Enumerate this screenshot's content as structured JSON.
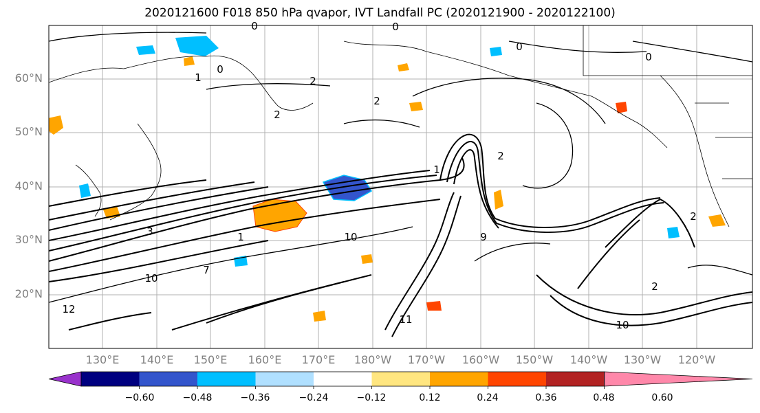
{
  "title": "2020121600 F018 850 hPa qvapor, IVT Landfall PC (2020121900 - 2020122100)",
  "lat_labels": [
    "60°N",
    "50°N",
    "40°N",
    "30°N",
    "20°N"
  ],
  "lon_labels": [
    "130°E",
    "140°E",
    "150°E",
    "160°E",
    "170°E",
    "180°W",
    "170°W",
    "160°W",
    "150°W",
    "140°W",
    "130°W",
    "120°W"
  ],
  "colorbar": {
    "colors": [
      "#9932CC",
      "#000080",
      "#3355CC",
      "#00BFFF",
      "#B0E0FF",
      "#FFFFFF",
      "#FFE680",
      "#FFA500",
      "#FF4500",
      "#B22222",
      "#FF88AA"
    ],
    "tick_labels": [
      "−0.60",
      "−0.48",
      "−0.36",
      "−0.24",
      "−0.12",
      "0.12",
      "0.24",
      "0.36",
      "0.48",
      "0.60"
    ]
  },
  "contour_labels": [
    "0",
    "0",
    "0",
    "0",
    "0",
    "2",
    "2",
    "2",
    "2",
    "1",
    "1",
    "3",
    "10",
    "10",
    "10",
    "9",
    "7",
    "2",
    "1",
    "11",
    "12",
    "2"
  ]
}
